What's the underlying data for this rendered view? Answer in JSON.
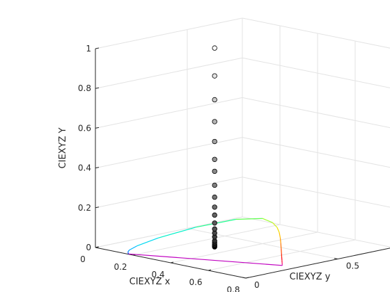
{
  "chart_data": {
    "type": "scatter3d",
    "x_axis": {
      "label": "CIEXYZ x",
      "range": [
        0,
        0.8
      ],
      "ticks": [
        0,
        0.2,
        0.4,
        0.6,
        0.8
      ],
      "tick_labels": [
        "0",
        "0.2",
        "0.4",
        "0.6",
        "0.8"
      ]
    },
    "y_axis": {
      "label": "CIEXYZ y",
      "range": [
        0,
        0.8
      ],
      "ticks": [
        0,
        0.5
      ],
      "tick_labels": [
        "0",
        "0.5"
      ]
    },
    "z_axis": {
      "label": "CIEXYZ Y",
      "range": [
        0,
        1
      ],
      "ticks": [
        0,
        0.2,
        0.4,
        0.6,
        0.8,
        1
      ],
      "tick_labels": [
        "0",
        "0.2",
        "0.4",
        "0.6",
        "0.8",
        "1"
      ]
    },
    "grid": true,
    "points": [
      {
        "x": 0.3127,
        "y": 0.329,
        "Y": 0.0,
        "gray": "#000000"
      },
      {
        "x": 0.3127,
        "y": 0.329,
        "Y": 0.005,
        "gray": "#0d0d0d"
      },
      {
        "x": 0.3127,
        "y": 0.329,
        "Y": 0.01,
        "gray": "#1a1a1a"
      },
      {
        "x": 0.3127,
        "y": 0.329,
        "Y": 0.02,
        "gray": "#262626"
      },
      {
        "x": 0.3127,
        "y": 0.329,
        "Y": 0.03,
        "gray": "#303030"
      },
      {
        "x": 0.3127,
        "y": 0.329,
        "Y": 0.05,
        "gray": "#3c3c3c"
      },
      {
        "x": 0.3127,
        "y": 0.329,
        "Y": 0.07,
        "gray": "#474747"
      },
      {
        "x": 0.3127,
        "y": 0.329,
        "Y": 0.09,
        "gray": "#505050"
      },
      {
        "x": 0.3127,
        "y": 0.329,
        "Y": 0.12,
        "gray": "#595959"
      },
      {
        "x": 0.3127,
        "y": 0.329,
        "Y": 0.16,
        "gray": "#636363"
      },
      {
        "x": 0.3127,
        "y": 0.329,
        "Y": 0.2,
        "gray": "#6c6c6c"
      },
      {
        "x": 0.3127,
        "y": 0.329,
        "Y": 0.25,
        "gray": "#767676"
      },
      {
        "x": 0.3127,
        "y": 0.329,
        "Y": 0.31,
        "gray": "#808080"
      },
      {
        "x": 0.3127,
        "y": 0.329,
        "Y": 0.38,
        "gray": "#8a8a8a"
      },
      {
        "x": 0.3127,
        "y": 0.329,
        "Y": 0.44,
        "gray": "#959595"
      },
      {
        "x": 0.3127,
        "y": 0.329,
        "Y": 0.53,
        "gray": "#a3a3a3"
      },
      {
        "x": 0.3127,
        "y": 0.329,
        "Y": 0.63,
        "gray": "#b5b5b5"
      },
      {
        "x": 0.3127,
        "y": 0.329,
        "Y": 0.74,
        "gray": "#cccccc"
      },
      {
        "x": 0.3127,
        "y": 0.329,
        "Y": 0.86,
        "gray": "#e3e3e3"
      },
      {
        "x": 0.3127,
        "y": 0.329,
        "Y": 1.0,
        "gray": "#ffffff"
      }
    ],
    "spectral_locus": {
      "Y": 0,
      "x": [
        0.1741,
        0.1738,
        0.1733,
        0.1726,
        0.1714,
        0.1689,
        0.1644,
        0.1566,
        0.144,
        0.1241,
        0.0913,
        0.0454,
        0.0082,
        0.0139,
        0.0743,
        0.1547,
        0.2296,
        0.3016,
        0.3731,
        0.4441,
        0.5125,
        0.5752,
        0.627,
        0.6658,
        0.6915,
        0.7079,
        0.719,
        0.726,
        0.7347
      ],
      "y": [
        0.005,
        0.0049,
        0.0048,
        0.0048,
        0.0051,
        0.0069,
        0.0109,
        0.0177,
        0.0297,
        0.0578,
        0.1327,
        0.295,
        0.5384,
        0.7502,
        0.8338,
        0.8059,
        0.7543,
        0.6923,
        0.6245,
        0.5547,
        0.4866,
        0.4242,
        0.3725,
        0.334,
        0.3083,
        0.292,
        0.2809,
        0.274,
        0.2653
      ],
      "colors": [
        "#8a00ff",
        "#8a00ff",
        "#7a00ff",
        "#6a00ff",
        "#4d00ff",
        "#2a10ff",
        "#0030ff",
        "#0060ff",
        "#0090ff",
        "#00b8ff",
        "#00d8f0",
        "#00f0c8",
        "#20ff90",
        "#60ff50",
        "#a0ff30",
        "#d0f020",
        "#f0e000",
        "#ffc000",
        "#ff9a00",
        "#ff7000",
        "#ff4800",
        "#ff2000",
        "#ff0010",
        "#ff0030",
        "#ff0050",
        "#f00070",
        "#e00090",
        "#d000a8",
        "#c000c0"
      ]
    },
    "purple_line_color": "#c000c0"
  }
}
